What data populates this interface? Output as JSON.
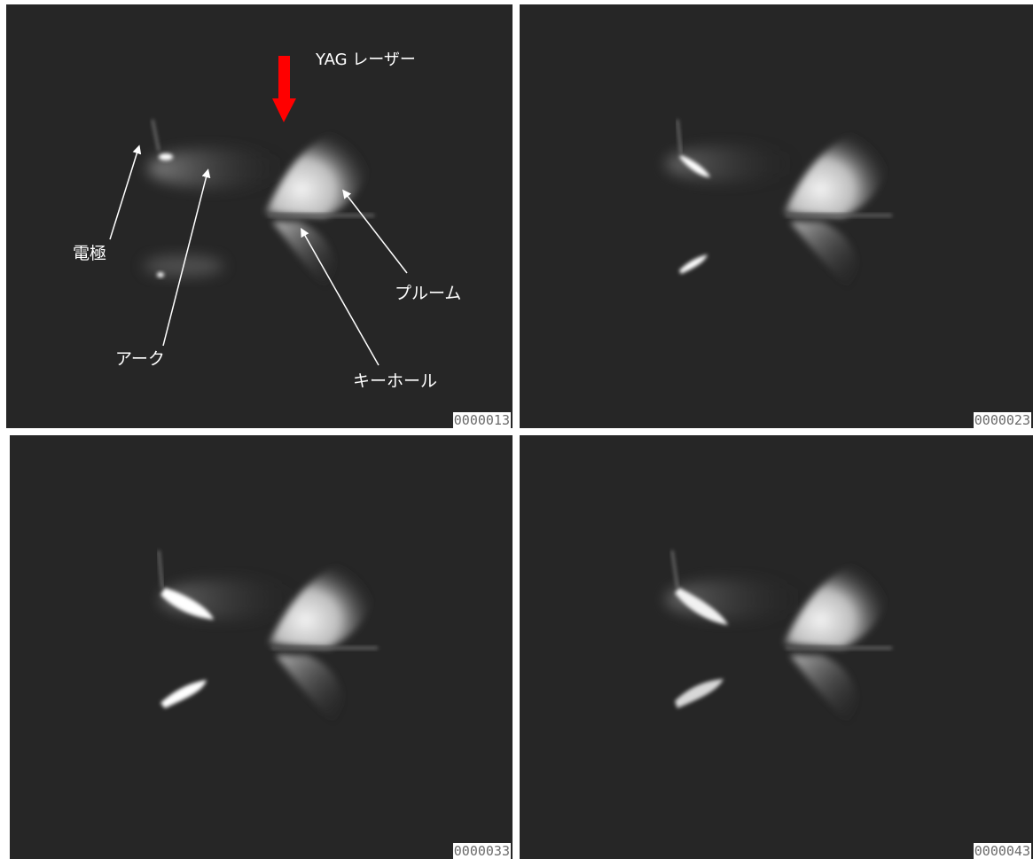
{
  "panels": [
    {
      "frame": "0000013"
    },
    {
      "frame": "0000023"
    },
    {
      "frame": "0000033"
    },
    {
      "frame": "0000043"
    }
  ],
  "annotations": {
    "laser": "YAG レーザー",
    "electrode": "電極",
    "arc": "アーク",
    "plume": "プルーム",
    "keyhole": "キーホール"
  },
  "colors": {
    "background": "#262626",
    "laser_arrow": "#ff0000",
    "annotation": "#ffffff"
  }
}
